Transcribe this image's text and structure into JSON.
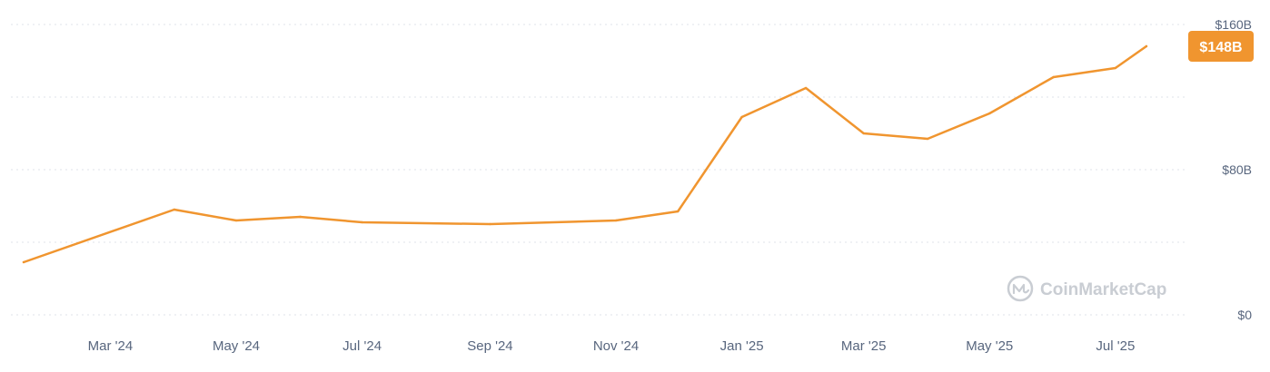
{
  "chart_data": {
    "type": "line",
    "title": "",
    "xlabel": "",
    "ylabel": "",
    "x_axis_type": "time",
    "x_range": [
      "2024-01-19",
      "2025-07-31"
    ],
    "ylim": [
      0,
      160
    ],
    "y_ticks": [
      {
        "value": 0,
        "label": "$0"
      },
      {
        "value": 80,
        "label": "$80B"
      },
      {
        "value": 160,
        "label": "$160B"
      }
    ],
    "grid_values": [
      0,
      40,
      80,
      120,
      160
    ],
    "grid": true,
    "grid_style": "dotted",
    "x_ticks": [
      {
        "date": "2024-03-01",
        "label": "Mar '24"
      },
      {
        "date": "2024-05-01",
        "label": "May '24"
      },
      {
        "date": "2024-07-01",
        "label": "Jul '24"
      },
      {
        "date": "2024-09-01",
        "label": "Sep '24"
      },
      {
        "date": "2024-11-01",
        "label": "Nov '24"
      },
      {
        "date": "2025-01-01",
        "label": "Jan '25"
      },
      {
        "date": "2025-03-01",
        "label": "Mar '25"
      },
      {
        "date": "2025-05-01",
        "label": "May '25"
      },
      {
        "date": "2025-07-01",
        "label": "Jul '25"
      }
    ],
    "series": [
      {
        "color": "#f0952f",
        "unit": "B USD",
        "points": [
          {
            "x": "2024-01-19",
            "y": 29
          },
          {
            "x": "2024-04-01",
            "y": 58
          },
          {
            "x": "2024-05-01",
            "y": 52
          },
          {
            "x": "2024-06-01",
            "y": 54
          },
          {
            "x": "2024-07-01",
            "y": 51
          },
          {
            "x": "2024-09-01",
            "y": 50
          },
          {
            "x": "2024-11-01",
            "y": 52
          },
          {
            "x": "2024-12-01",
            "y": 57
          },
          {
            "x": "2025-01-01",
            "y": 109
          },
          {
            "x": "2025-02-01",
            "y": 125
          },
          {
            "x": "2025-03-01",
            "y": 100
          },
          {
            "x": "2025-04-01",
            "y": 97
          },
          {
            "x": "2025-05-01",
            "y": 111
          },
          {
            "x": "2025-06-01",
            "y": 131
          },
          {
            "x": "2025-07-01",
            "y": 136
          },
          {
            "x": "2025-07-16",
            "y": 148
          }
        ]
      }
    ],
    "current_value_badge": {
      "label": "$148B",
      "value": 148,
      "color": "#f0952f"
    },
    "watermark": {
      "text": "CoinMarketCap",
      "color": "#c9cdd3"
    }
  }
}
